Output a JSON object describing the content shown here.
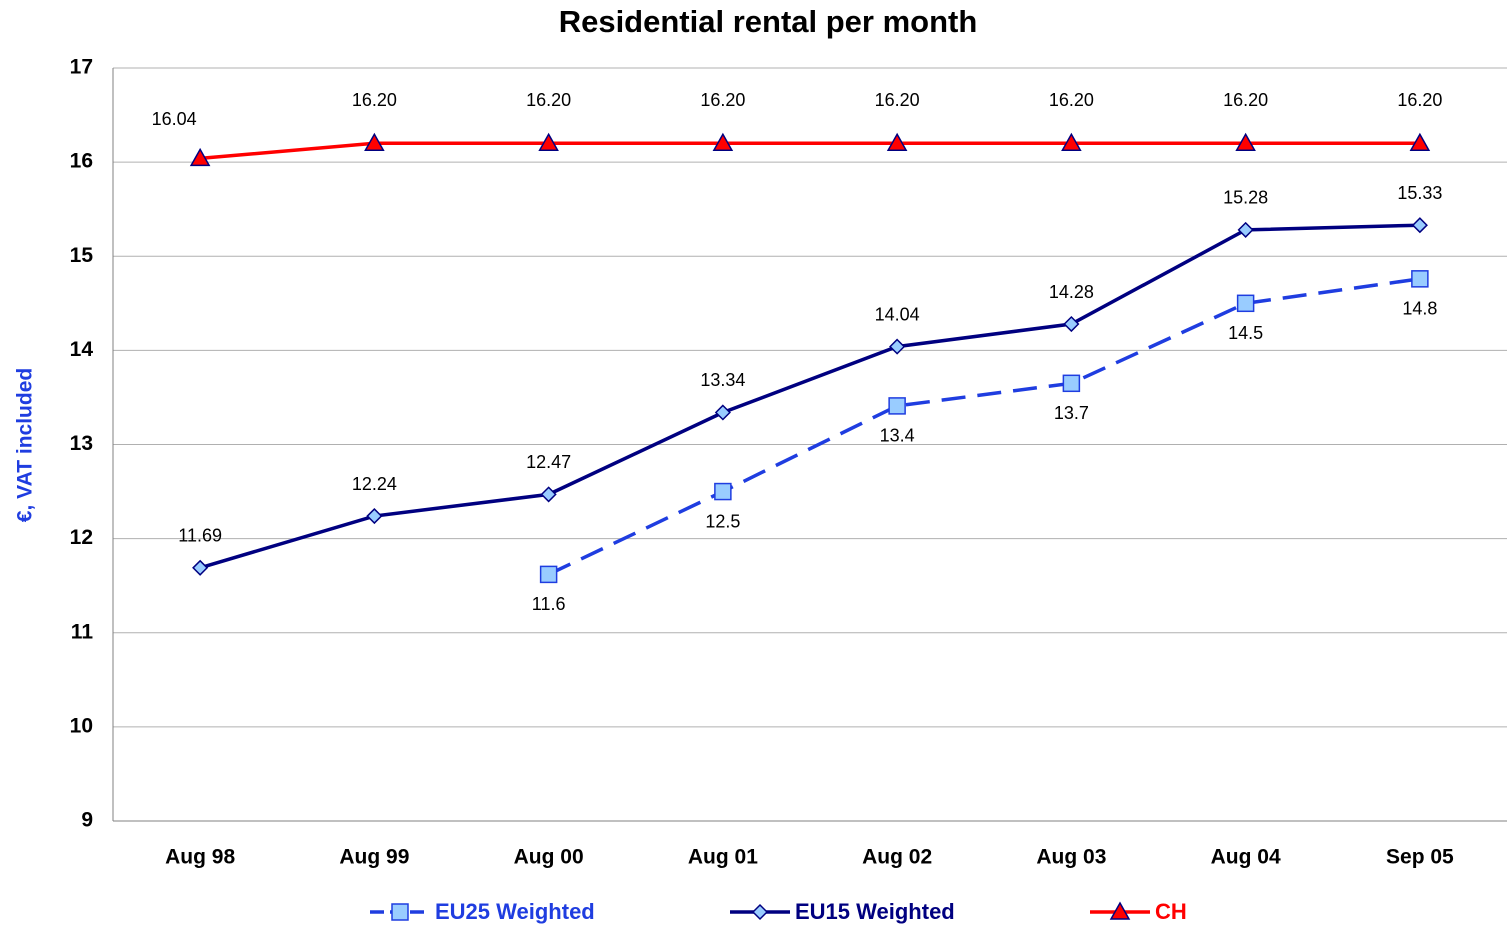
{
  "chart_data": {
    "type": "line",
    "title": "Residential rental per month",
    "y_label": "€, VAT included",
    "categories": [
      "Aug 98",
      "Aug 99",
      "Aug 00",
      "Aug 01",
      "Aug 02",
      "Aug 03",
      "Aug 04",
      "Sep 05"
    ],
    "series": [
      {
        "name": "EU25 Weighted",
        "color": "#1f3de0",
        "marker_fill": "#99ccff",
        "marker": "square",
        "dashed": true,
        "values": [
          null,
          null,
          11.62,
          12.5,
          13.41,
          13.65,
          14.5,
          14.76
        ],
        "value_labels": [
          null,
          null,
          "11.6",
          "12.5",
          "13.4",
          "13.7",
          "14.5",
          "14.8"
        ]
      },
      {
        "name": "EU15 Weighted",
        "color": "#000080",
        "marker_fill": "#99ccff",
        "marker": "diamond",
        "dashed": false,
        "values": [
          11.69,
          12.24,
          12.47,
          13.34,
          14.04,
          14.28,
          15.28,
          15.33
        ]
      },
      {
        "name": "CH",
        "color": "#ff0000",
        "marker_fill": "#ff0000",
        "marker": "triangle",
        "dashed": false,
        "values": [
          16.04,
          16.2,
          16.2,
          16.2,
          16.2,
          16.2,
          16.2,
          16.2
        ],
        "value_labels": [
          "16.04",
          "16.20",
          "16.20",
          "16.20",
          "16.20",
          "16.20",
          "16.20",
          "16.20"
        ]
      }
    ],
    "ylim": [
      9,
      17
    ],
    "yticks": [
      9,
      10,
      11,
      12,
      13,
      14,
      15,
      16,
      17
    ],
    "grid": true,
    "legend": "bottom"
  }
}
